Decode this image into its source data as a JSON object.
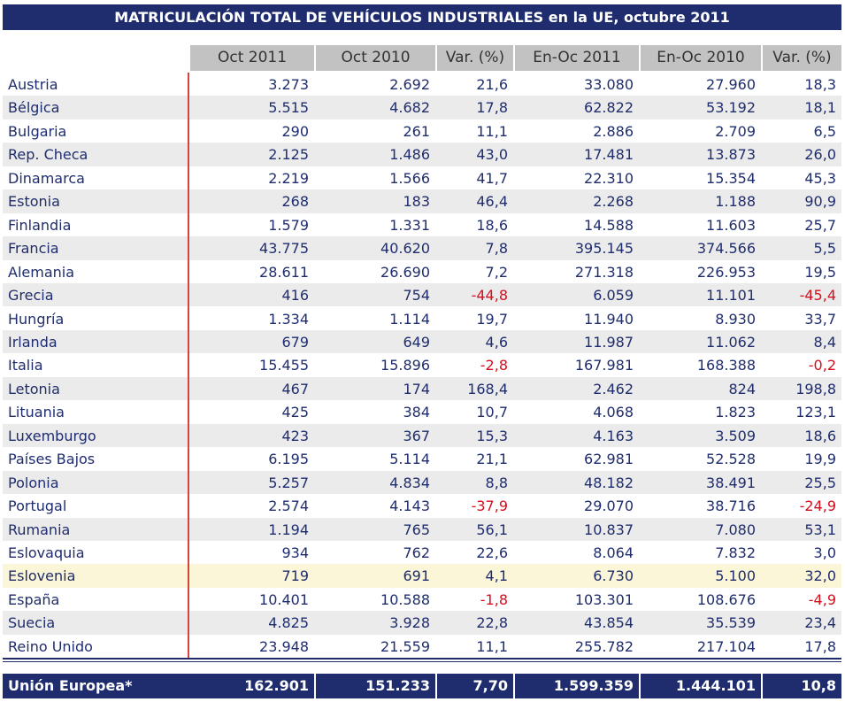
{
  "title": "MATRICULACIÓN TOTAL DE VEHÍCULOS INDUSTRIALES en la UE, octubre 2011",
  "table": {
    "header": [
      "Oct 2011",
      "Oct 2010",
      "Var. (%)",
      "En-Oc 2011",
      "En-Oc 2010",
      "Var. (%)"
    ],
    "rows": [
      [
        "Austria",
        "3.273",
        "2.692",
        "21,6",
        "33.080",
        "27.960",
        "18,3"
      ],
      [
        "Bélgica",
        "5.515",
        "4.682",
        "17,8",
        "62.822",
        "53.192",
        "18,1"
      ],
      [
        "Bulgaria",
        "290",
        "261",
        "11,1",
        "2.886",
        "2.709",
        "6,5"
      ],
      [
        "Rep. Checa",
        "2.125",
        "1.486",
        "43,0",
        "17.481",
        "13.873",
        "26,0"
      ],
      [
        "Dinamarca",
        "2.219",
        "1.566",
        "41,7",
        "22.310",
        "15.354",
        "45,3"
      ],
      [
        "Estonia",
        "268",
        "183",
        "46,4",
        "2.268",
        "1.188",
        "90,9"
      ],
      [
        "Finlandia",
        "1.579",
        "1.331",
        "18,6",
        "14.588",
        "11.603",
        "25,7"
      ],
      [
        "Francia",
        "43.775",
        "40.620",
        "7,8",
        "395.145",
        "374.566",
        "5,5"
      ],
      [
        "Alemania",
        "28.611",
        "26.690",
        "7,2",
        "271.318",
        "226.953",
        "19,5"
      ],
      [
        "Grecia",
        "416",
        "754",
        "-44,8",
        "6.059",
        "11.101",
        "-45,4"
      ],
      [
        "Hungría",
        "1.334",
        "1.114",
        "19,7",
        "11.940",
        "8.930",
        "33,7"
      ],
      [
        "Irlanda",
        "679",
        "649",
        "4,6",
        "11.987",
        "11.062",
        "8,4"
      ],
      [
        "Italia",
        "15.455",
        "15.896",
        "-2,8",
        "167.981",
        "168.388",
        "-0,2"
      ],
      [
        "Letonia",
        "467",
        "174",
        "168,4",
        "2.462",
        "824",
        "198,8"
      ],
      [
        "Lituania",
        "425",
        "384",
        "10,7",
        "4.068",
        "1.823",
        "123,1"
      ],
      [
        "Luxemburgo",
        "423",
        "367",
        "15,3",
        "4.163",
        "3.509",
        "18,6"
      ],
      [
        "Países Bajos",
        "6.195",
        "5.114",
        "21,1",
        "62.981",
        "52.528",
        "19,9"
      ],
      [
        "Polonia",
        "5.257",
        "4.834",
        "8,8",
        "48.182",
        "38.491",
        "25,5"
      ],
      [
        "Portugal",
        "2.574",
        "4.143",
        "-37,9",
        "29.070",
        "38.716",
        "-24,9"
      ],
      [
        "Rumania",
        "1.194",
        "765",
        "56,1",
        "10.837",
        "7.080",
        "53,1"
      ],
      [
        "Eslovaquia",
        "934",
        "762",
        "22,6",
        "8.064",
        "7.832",
        "3,0"
      ],
      [
        "Eslovenia",
        "719",
        "691",
        "4,1",
        "6.730",
        "5.100",
        "32,0"
      ],
      [
        "España",
        "10.401",
        "10.588",
        "-1,8",
        "103.301",
        "108.676",
        "-4,9"
      ],
      [
        "Suecia",
        "4.825",
        "3.928",
        "22,8",
        "43.854",
        "35.539",
        "23,4"
      ],
      [
        "Reino Unido",
        "23.948",
        "21.559",
        "11,1",
        "255.782",
        "217.104",
        "17,8"
      ]
    ],
    "total": [
      "Unión Europea*",
      "162.901",
      "151.233",
      "7,70",
      "1.599.359",
      "1.444.101",
      "10,8"
    ]
  }
}
